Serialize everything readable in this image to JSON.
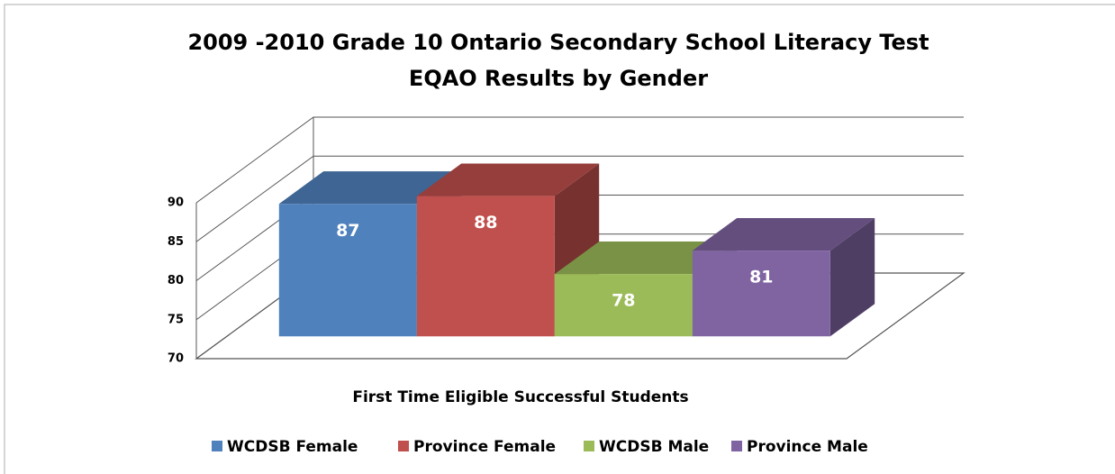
{
  "chart_data": {
    "type": "bar3d",
    "title": [
      "2009 -2010 Grade 10 Ontario Secondary School Literacy Test",
      "EQAO Results by Gender"
    ],
    "categories": [
      "First Time Eligible Successful Students"
    ],
    "series": [
      {
        "name": "WCDSB Female",
        "color": "#4f81bd",
        "values": [
          87
        ]
      },
      {
        "name": "Province Female",
        "color": "#c0504d",
        "values": [
          88
        ]
      },
      {
        "name": "WCDSB Male",
        "color": "#9bbb59",
        "values": [
          78
        ]
      },
      {
        "name": "Province Male",
        "color": "#8064a2",
        "values": [
          81
        ]
      }
    ],
    "ylim": [
      70,
      90
    ],
    "yticks": [
      70,
      75,
      80,
      85,
      90
    ],
    "grid": true,
    "legend": "bottom",
    "data_labels": true
  }
}
